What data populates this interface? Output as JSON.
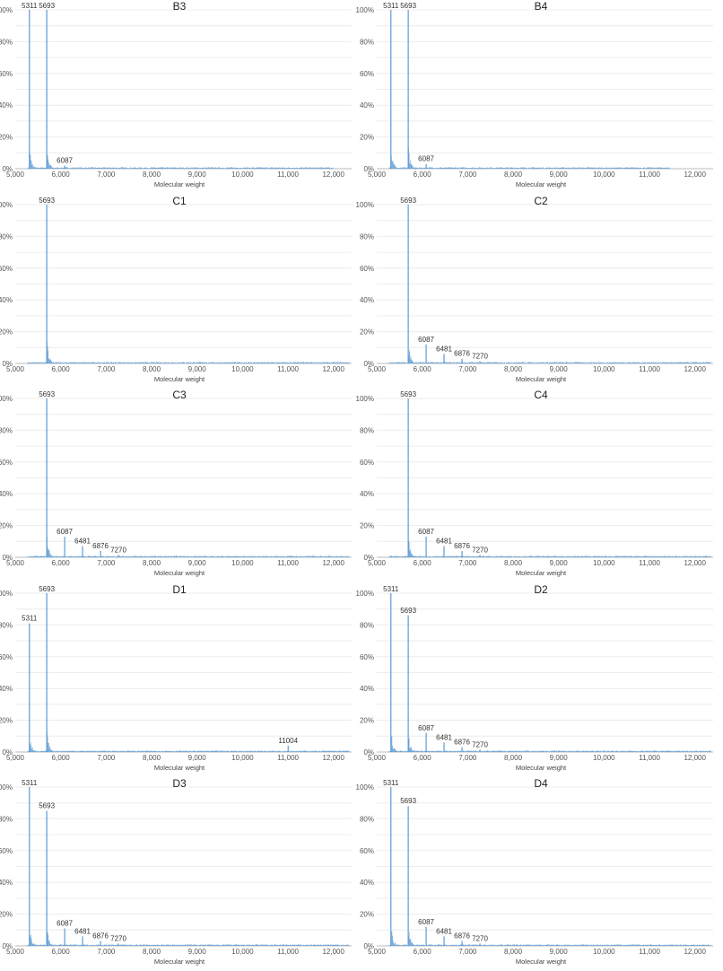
{
  "chart_data": [
    {
      "type": "line",
      "title": "B3",
      "xlabel": "Molecular weight",
      "xlim": [
        5000,
        12400
      ],
      "ylim": [
        0,
        100
      ],
      "data_end": 12000,
      "peaks": [
        {
          "x": 5311,
          "y": 100,
          "label": "5311"
        },
        {
          "x": 5693,
          "y": 100,
          "label": "5693"
        },
        {
          "x": 6087,
          "y": 2,
          "label": "6087"
        }
      ]
    },
    {
      "type": "line",
      "title": "B4",
      "xlabel": "Molecular weight",
      "xlim": [
        5000,
        12400
      ],
      "ylim": [
        0,
        100
      ],
      "data_end": 11450,
      "peaks": [
        {
          "x": 5311,
          "y": 100,
          "label": "5311"
        },
        {
          "x": 5693,
          "y": 100,
          "label": "5693"
        },
        {
          "x": 6087,
          "y": 3,
          "label": "6087"
        }
      ]
    },
    {
      "type": "line",
      "title": "C1",
      "xlabel": "Molecular weight",
      "xlim": [
        5000,
        12400
      ],
      "ylim": [
        0,
        100
      ],
      "data_end": 12350,
      "peaks": [
        {
          "x": 5693,
          "y": 100,
          "label": "5693"
        }
      ]
    },
    {
      "type": "line",
      "title": "C2",
      "xlabel": "Molecular weight",
      "xlim": [
        5000,
        12400
      ],
      "ylim": [
        0,
        100
      ],
      "data_end": 12350,
      "peaks": [
        {
          "x": 5693,
          "y": 100,
          "label": "5693"
        },
        {
          "x": 6087,
          "y": 12,
          "label": "6087"
        },
        {
          "x": 6481,
          "y": 6,
          "label": "6481"
        },
        {
          "x": 6876,
          "y": 3,
          "label": "6876"
        },
        {
          "x": 7270,
          "y": 1.5,
          "label": "7270"
        }
      ]
    },
    {
      "type": "line",
      "title": "C3",
      "xlabel": "Molecular weight",
      "xlim": [
        5000,
        12400
      ],
      "ylim": [
        0,
        100
      ],
      "data_end": 12350,
      "peaks": [
        {
          "x": 5693,
          "y": 100,
          "label": "5693"
        },
        {
          "x": 6087,
          "y": 13,
          "label": "6087"
        },
        {
          "x": 6481,
          "y": 7,
          "label": "6481"
        },
        {
          "x": 6876,
          "y": 4,
          "label": "6876"
        },
        {
          "x": 7270,
          "y": 1.5,
          "label": "7270"
        }
      ]
    },
    {
      "type": "line",
      "title": "C4",
      "xlabel": "Molecular weight",
      "xlim": [
        5000,
        12400
      ],
      "ylim": [
        0,
        100
      ],
      "data_end": 12350,
      "peaks": [
        {
          "x": 5693,
          "y": 100,
          "label": "5693"
        },
        {
          "x": 6087,
          "y": 13,
          "label": "6087"
        },
        {
          "x": 6481,
          "y": 7,
          "label": "6481"
        },
        {
          "x": 6876,
          "y": 4,
          "label": "6876"
        },
        {
          "x": 7270,
          "y": 1.5,
          "label": "7270"
        }
      ]
    },
    {
      "type": "line",
      "title": "D1",
      "xlabel": "Molecular weight",
      "xlim": [
        5000,
        12400
      ],
      "ylim": [
        0,
        100
      ],
      "data_end": 12350,
      "peaks": [
        {
          "x": 5311,
          "y": 81,
          "label": "5311"
        },
        {
          "x": 5693,
          "y": 100,
          "label": "5693"
        },
        {
          "x": 11004,
          "y": 4,
          "label": "11004"
        }
      ]
    },
    {
      "type": "line",
      "title": "D2",
      "xlabel": "Molecular weight",
      "xlim": [
        5000,
        12400
      ],
      "ylim": [
        0,
        100
      ],
      "data_end": 12350,
      "peaks": [
        {
          "x": 5311,
          "y": 100,
          "label": "5311"
        },
        {
          "x": 5693,
          "y": 86,
          "label": "5693"
        },
        {
          "x": 6087,
          "y": 12,
          "label": "6087"
        },
        {
          "x": 6481,
          "y": 6,
          "label": "6481"
        },
        {
          "x": 6876,
          "y": 3,
          "label": "6876"
        },
        {
          "x": 7270,
          "y": 1.5,
          "label": "7270"
        }
      ]
    },
    {
      "type": "line",
      "title": "D3",
      "xlabel": "Molecular weight",
      "xlim": [
        5000,
        12400
      ],
      "ylim": [
        0,
        100
      ],
      "data_end": 12350,
      "peaks": [
        {
          "x": 5311,
          "y": 100,
          "label": "5311"
        },
        {
          "x": 5693,
          "y": 85,
          "label": "5693"
        },
        {
          "x": 6087,
          "y": 11,
          "label": "6087"
        },
        {
          "x": 6481,
          "y": 6,
          "label": "6481"
        },
        {
          "x": 6876,
          "y": 3,
          "label": "6876"
        },
        {
          "x": 7270,
          "y": 1.5,
          "label": "7270"
        }
      ]
    },
    {
      "type": "line",
      "title": "D4",
      "xlabel": "Molecular weight",
      "xlim": [
        5000,
        12400
      ],
      "ylim": [
        0,
        100
      ],
      "data_end": 12350,
      "peaks": [
        {
          "x": 5311,
          "y": 100,
          "label": "5311"
        },
        {
          "x": 5693,
          "y": 88,
          "label": "5693"
        },
        {
          "x": 6087,
          "y": 12,
          "label": "6087"
        },
        {
          "x": 6481,
          "y": 6,
          "label": "6481"
        },
        {
          "x": 6876,
          "y": 3,
          "label": "6876"
        },
        {
          "x": 7270,
          "y": 1.5,
          "label": "7270"
        }
      ]
    }
  ],
  "y_ticks": [
    "0%",
    "20%",
    "40%",
    "60%",
    "80%",
    "100%"
  ],
  "x_ticks": [
    "5,000",
    "6,000",
    "7,000",
    "8,000",
    "9,000",
    "10,000",
    "11,000",
    "12,000"
  ],
  "colors": {
    "trace": "#5b9bd5",
    "grid": "#ececec"
  }
}
